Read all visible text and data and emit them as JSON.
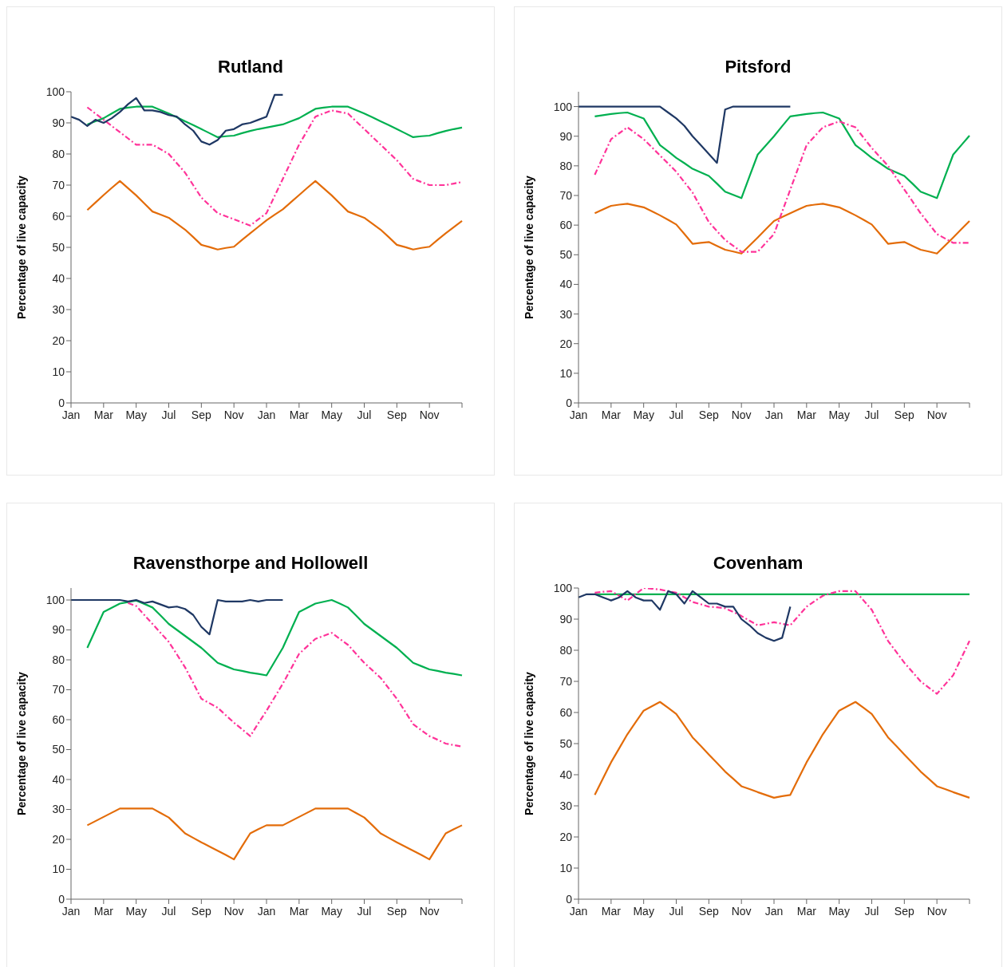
{
  "chart_data": [
    {
      "type": "line",
      "title": "Rutland",
      "ylabel": "Percentage of live capacity",
      "marker": "none",
      "ylim": [
        0,
        100
      ],
      "yticks": [
        0,
        10,
        20,
        30,
        40,
        50,
        60,
        70,
        80,
        90,
        100
      ],
      "categories": [
        "Jan",
        null,
        null,
        null,
        "Mar",
        null,
        null,
        null,
        "May",
        null,
        null,
        null,
        "Jul",
        null,
        null,
        null,
        "Sep",
        null,
        null,
        null,
        "Nov",
        null,
        null,
        null,
        "Jan",
        null,
        null,
        null,
        "Mar",
        null,
        null,
        null,
        "May",
        null,
        null,
        null,
        "Jul",
        null,
        null,
        null,
        "Sep",
        null,
        null,
        null,
        "Nov",
        null,
        null,
        null,
        null
      ],
      "series": [
        {
          "color": "#e36c09",
          "line_style": "solid",
          "values": [
            null,
            null,
            62,
            64.4,
            66.8,
            69.1,
            71.3,
            69,
            66.7,
            64.1,
            61.5,
            60.5,
            59.5,
            57.6,
            55.7,
            53.3,
            50.8,
            50.1,
            49.3,
            49.8,
            50.2,
            52.4,
            54.5,
            56.6,
            58.7,
            60.5,
            62.2,
            64.5,
            66.8,
            69.1,
            71.3,
            69,
            66.7,
            64.1,
            61.5,
            60.5,
            59.5,
            57.6,
            55.7,
            53.3,
            50.8,
            50.1,
            49.3,
            49.8,
            50.2,
            52.4,
            54.5,
            56.5,
            58.5
          ]
        },
        {
          "color": "#00b050",
          "line_style": "solid",
          "values": [
            null,
            null,
            89.5,
            90.5,
            91.5,
            93,
            94.5,
            94.9,
            95.2,
            95.2,
            95.2,
            94.1,
            93,
            91.8,
            90.5,
            89.3,
            88,
            86.7,
            85.4,
            85.7,
            85.9,
            86.7,
            87.4,
            88,
            88.5,
            89,
            89.5,
            90.5,
            91.5,
            93,
            94.5,
            94.9,
            95.2,
            95.2,
            95.2,
            94.1,
            93,
            91.8,
            90.5,
            89.3,
            88,
            86.7,
            85.4,
            85.7,
            85.9,
            86.7,
            87.4,
            88,
            88.5
          ]
        },
        {
          "color": "#ff3399",
          "line_style": "dashed",
          "values": [
            null,
            null,
            95,
            93,
            91,
            89,
            87,
            85,
            83,
            83,
            83,
            81.5,
            80,
            77,
            74,
            70,
            66,
            63.5,
            61,
            60,
            59,
            58,
            57,
            59,
            61,
            66.5,
            72,
            77.5,
            83,
            87.5,
            92,
            93,
            94,
            93.5,
            93,
            90.5,
            88,
            85.5,
            83,
            80.5,
            78,
            75,
            72,
            71,
            70,
            70,
            70,
            70.5,
            71
          ]
        },
        {
          "color": "#1f3864",
          "line_style": "solid",
          "values": [
            92,
            91,
            89,
            91,
            90,
            91.5,
            93.5,
            96,
            98,
            94,
            94,
            93.5,
            92.5,
            92,
            89.5,
            87.5,
            84,
            83,
            84.5,
            87.5,
            88,
            89.5,
            90,
            91,
            92,
            99,
            99,
            null,
            null,
            null,
            null,
            null,
            null,
            null,
            null,
            null,
            null,
            null,
            null,
            null,
            null,
            null,
            null,
            null,
            null,
            null,
            null,
            null,
            null
          ]
        }
      ]
    },
    {
      "type": "line",
      "title": "Pitsford",
      "ylabel": "Percentage of live capacity",
      "marker": "none",
      "ylim": [
        0,
        105
      ],
      "yticks": [
        0,
        10,
        20,
        30,
        40,
        50,
        60,
        70,
        80,
        90,
        100
      ],
      "categories": [
        "Jan",
        null,
        null,
        null,
        "Mar",
        null,
        null,
        null,
        "May",
        null,
        null,
        null,
        "Jul",
        null,
        null,
        null,
        "Sep",
        null,
        null,
        null,
        "Nov",
        null,
        null,
        null,
        "Jan",
        null,
        null,
        null,
        "Mar",
        null,
        null,
        null,
        "May",
        null,
        null,
        null,
        "Jul",
        null,
        null,
        null,
        "Sep",
        null,
        null,
        null,
        "Nov",
        null,
        null,
        null,
        null
      ],
      "series": [
        {
          "color": "#e36c09",
          "line_style": "solid",
          "values": [
            null,
            null,
            64,
            65.3,
            66.5,
            66.9,
            67.2,
            66.6,
            66,
            64.7,
            63.3,
            61.8,
            60.2,
            57,
            53.7,
            54,
            54.3,
            53,
            51.7,
            51.1,
            50.4,
            53.1,
            55.8,
            58.6,
            61.4,
            62.7,
            64,
            65.3,
            66.5,
            66.9,
            67.2,
            66.6,
            66,
            64.7,
            63.3,
            61.8,
            60.2,
            57,
            53.7,
            54,
            54.3,
            53,
            51.7,
            51.1,
            50.4,
            53.1,
            55.8,
            58.6,
            61.4
          ]
        },
        {
          "color": "#00b050",
          "line_style": "solid",
          "values": [
            null,
            null,
            96.7,
            97.1,
            97.5,
            97.8,
            98,
            97,
            96,
            91.5,
            87,
            84.9,
            82.7,
            80.9,
            79,
            77.8,
            76.6,
            74,
            71.3,
            70.2,
            69.1,
            76.5,
            83.8,
            86.9,
            90,
            93.4,
            96.7,
            97.1,
            97.5,
            97.8,
            98,
            97,
            96,
            91.5,
            87,
            84.9,
            82.7,
            80.9,
            79,
            77.8,
            76.6,
            74,
            71.3,
            70.2,
            69.1,
            76.5,
            83.8,
            87,
            90.2
          ]
        },
        {
          "color": "#ff3399",
          "line_style": "dashed",
          "values": [
            null,
            null,
            77,
            83,
            89,
            91,
            93,
            91,
            89,
            86.3,
            83.5,
            80.8,
            78,
            74.5,
            71,
            66,
            61,
            58,
            55,
            53,
            51,
            51,
            51,
            54,
            57,
            64.5,
            72,
            79.5,
            87,
            90,
            93,
            94,
            95,
            94,
            93,
            89.5,
            86,
            83,
            80,
            76,
            72,
            68,
            64,
            60.5,
            57,
            55.5,
            54,
            54,
            54
          ]
        },
        {
          "color": "#1f3864",
          "line_style": "solid",
          "values": [
            100,
            100,
            100,
            100,
            100,
            100,
            100,
            100,
            100,
            100,
            100,
            98,
            96,
            93.5,
            90,
            87,
            84,
            81,
            99,
            100,
            100,
            100,
            100,
            100,
            100,
            100,
            100,
            null,
            null,
            null,
            null,
            null,
            null,
            null,
            null,
            null,
            null,
            null,
            null,
            null,
            null,
            null,
            null,
            null,
            null,
            null,
            null,
            null,
            null
          ]
        }
      ]
    },
    {
      "type": "line",
      "title": "Ravensthorpe and Hollowell",
      "ylabel": "Percentage of live capacity",
      "marker": "none",
      "ylim": [
        0,
        104
      ],
      "yticks": [
        0,
        10,
        20,
        30,
        40,
        50,
        60,
        70,
        80,
        90,
        100
      ],
      "categories": [
        "Jan",
        null,
        null,
        null,
        "Mar",
        null,
        null,
        null,
        "May",
        null,
        null,
        null,
        "Jul",
        null,
        null,
        null,
        "Sep",
        null,
        null,
        null,
        "Nov",
        null,
        null,
        null,
        "Jan",
        null,
        null,
        null,
        "Mar",
        null,
        null,
        null,
        "May",
        null,
        null,
        null,
        "Jul",
        null,
        null,
        null,
        "Sep",
        null,
        null,
        null,
        "Nov",
        null,
        null,
        null,
        null
      ],
      "series": [
        {
          "color": "#e36c09",
          "line_style": "solid",
          "values": [
            null,
            null,
            24.7,
            26.1,
            27.5,
            28.9,
            30.3,
            30.3,
            30.3,
            30.3,
            30.3,
            28.8,
            27.3,
            24.7,
            22,
            20.5,
            19,
            17.6,
            16.2,
            14.8,
            13.3,
            17.7,
            22,
            23.4,
            24.7,
            24.7,
            24.7,
            26.1,
            27.5,
            28.9,
            30.3,
            30.3,
            30.3,
            30.3,
            30.3,
            28.8,
            27.3,
            24.7,
            22,
            20.5,
            19,
            17.6,
            16.2,
            14.8,
            13.3,
            17.7,
            22,
            23.4,
            24.7
          ]
        },
        {
          "color": "#00b050",
          "line_style": "solid",
          "values": [
            null,
            null,
            84,
            90,
            96,
            97.4,
            98.8,
            99.3,
            99.8,
            98.7,
            97.5,
            94.8,
            92,
            90,
            88,
            86,
            84,
            81.5,
            79,
            77.9,
            76.8,
            76.3,
            75.7,
            75.3,
            74.8,
            79.4,
            84,
            90,
            96,
            97.4,
            98.8,
            99.4,
            100,
            98.8,
            97.5,
            94.8,
            92,
            90,
            88,
            86,
            84,
            81.5,
            79,
            77.9,
            76.8,
            76.3,
            75.7,
            75.3,
            74.8
          ]
        },
        {
          "color": "#ff3399",
          "line_style": "dashed",
          "values": [
            null,
            null,
            null,
            null,
            null,
            null,
            null,
            99,
            98,
            95,
            92,
            89,
            86,
            81.8,
            77.5,
            72.3,
            67,
            65.5,
            64,
            61.5,
            59,
            56.8,
            54.5,
            58.8,
            63,
            67.5,
            72,
            77,
            82,
            84.5,
            87,
            88,
            89,
            87,
            85,
            82,
            79,
            76.5,
            74,
            70.5,
            67,
            62.8,
            58.5,
            56.5,
            54.5,
            53.3,
            52,
            51.5,
            51
          ]
        },
        {
          "color": "#1f3864",
          "line_style": "solid",
          "values": [
            100,
            100,
            100,
            100,
            100,
            100,
            100,
            99.5,
            100,
            99,
            99.5,
            98.5,
            97.5,
            97.8,
            97,
            95,
            91,
            88.5,
            100,
            99.5,
            99.5,
            99.5,
            100,
            99.5,
            100,
            100,
            100,
            null,
            null,
            null,
            null,
            null,
            null,
            null,
            null,
            null,
            null,
            null,
            null,
            null,
            null,
            null,
            null,
            null,
            null,
            null,
            null,
            null,
            null
          ]
        }
      ]
    },
    {
      "type": "line",
      "title": "Covenham",
      "ylabel": "Percentage of live capacity",
      "marker": "none",
      "ylim": [
        0,
        100
      ],
      "yticks": [
        0,
        10,
        20,
        30,
        40,
        50,
        60,
        70,
        80,
        90,
        100
      ],
      "categories": [
        "Jan",
        null,
        null,
        null,
        "Mar",
        null,
        null,
        null,
        "May",
        null,
        null,
        null,
        "Jul",
        null,
        null,
        null,
        "Sep",
        null,
        null,
        null,
        "Nov",
        null,
        null,
        null,
        "Jan",
        null,
        null,
        null,
        "Mar",
        null,
        null,
        null,
        "May",
        null,
        null,
        null,
        "Jul",
        null,
        null,
        null,
        "Sep",
        null,
        null,
        null,
        "Nov",
        null,
        null,
        null,
        null
      ],
      "series": [
        {
          "color": "#e36c09",
          "line_style": "solid",
          "values": [
            null,
            null,
            33.5,
            38.8,
            44,
            48.5,
            53,
            56.8,
            60.6,
            62,
            63.4,
            61.5,
            59.5,
            55.8,
            52,
            49.3,
            46.5,
            43.8,
            41,
            38.7,
            36.3,
            35.4,
            34.4,
            33.5,
            32.6,
            33.1,
            33.5,
            38.8,
            44,
            48.5,
            53,
            56.8,
            60.6,
            62,
            63.4,
            61.5,
            59.5,
            55.8,
            52,
            49.3,
            46.5,
            43.8,
            41,
            38.7,
            36.3,
            35.4,
            34.4,
            33.5,
            32.6
          ]
        },
        {
          "color": "#00b050",
          "line_style": "solid",
          "values": [
            null,
            null,
            98,
            98,
            98,
            98,
            98,
            98,
            98,
            98,
            98,
            98,
            98,
            98,
            98,
            98,
            98,
            98,
            98,
            98,
            98,
            98,
            98,
            98,
            98,
            98,
            98,
            98,
            98,
            98,
            98,
            98,
            98,
            98,
            98,
            98,
            98,
            98,
            98,
            98,
            98,
            98,
            98,
            98,
            98,
            98,
            98,
            98,
            98
          ]
        },
        {
          "color": "#ff3399",
          "line_style": "dashed",
          "values": [
            null,
            null,
            98.5,
            98.8,
            99,
            97.5,
            96,
            98,
            100,
            99.8,
            99.5,
            99,
            98.5,
            97,
            95.5,
            94.8,
            94,
            93.8,
            93.5,
            92.3,
            91,
            89.5,
            88,
            88.5,
            89,
            88.5,
            88,
            91,
            94,
            95.8,
            97.5,
            98.3,
            99,
            99,
            99,
            96,
            93,
            88,
            83,
            79.5,
            76,
            73,
            70,
            68,
            66,
            69,
            72,
            77.5,
            83
          ]
        },
        {
          "color": "#1f3864",
          "line_style": "solid",
          "values": [
            97,
            98,
            98,
            97,
            96,
            97,
            99,
            97,
            96,
            96,
            93,
            99,
            98,
            95,
            99,
            97,
            95,
            95,
            94,
            94,
            90,
            88,
            85.5,
            84,
            83,
            84,
            94,
            null,
            null,
            null,
            null,
            null,
            null,
            null,
            null,
            null,
            null,
            null,
            null,
            null,
            null,
            null,
            null,
            null,
            null,
            null,
            null,
            null,
            null
          ]
        }
      ]
    }
  ]
}
